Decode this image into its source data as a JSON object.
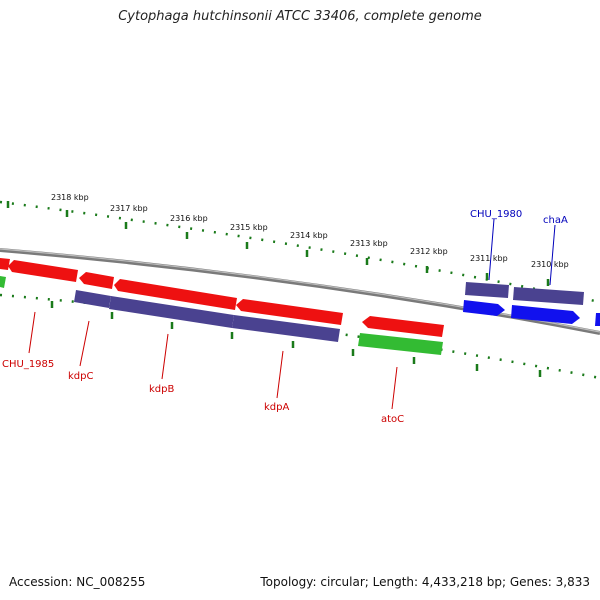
{
  "title": "Cytophaga hutchinsonii ATCC 33406, complete genome",
  "footer": {
    "accession": "Accession: NC_008255",
    "summary": "Topology: circular; Length: 4,433,218 bp; Genes: 3,833"
  },
  "colors": {
    "backbone": "#888888",
    "ticks": "#1a7a1a",
    "red_gene": "#ee1111",
    "purple_gene": "#4a4290",
    "green_gene": "#33bb33",
    "blue_gene": "#1111ee",
    "red_label": "#cc0000",
    "blue_label": "#0000bb"
  },
  "ruler": {
    "unit": "kbp",
    "labels": [
      {
        "id": "2318",
        "text": "2318 kbp"
      },
      {
        "id": "2317",
        "text": "2317 kbp"
      },
      {
        "id": "2316",
        "text": "2316 kbp"
      },
      {
        "id": "2315",
        "text": "2315 kbp"
      },
      {
        "id": "2314",
        "text": "2314 kbp"
      },
      {
        "id": "2313",
        "text": "2313 kbp"
      },
      {
        "id": "2312",
        "text": "2312 kbp"
      },
      {
        "id": "2311",
        "text": "2311 kbp"
      },
      {
        "id": "2310",
        "text": "2310 kbp"
      }
    ]
  },
  "gene_labels": [
    {
      "id": "chu1985",
      "text": "CHU_1985",
      "color": "red"
    },
    {
      "id": "kdpC",
      "text": "kdpC",
      "color": "red"
    },
    {
      "id": "kdpB",
      "text": "kdpB",
      "color": "red"
    },
    {
      "id": "kdpA",
      "text": "kdpA",
      "color": "red"
    },
    {
      "id": "atoC",
      "text": "atoC",
      "color": "red"
    },
    {
      "id": "chu1980",
      "text": "CHU_1980",
      "color": "blue"
    },
    {
      "id": "chaA",
      "text": "chaA",
      "color": "blue"
    }
  ]
}
